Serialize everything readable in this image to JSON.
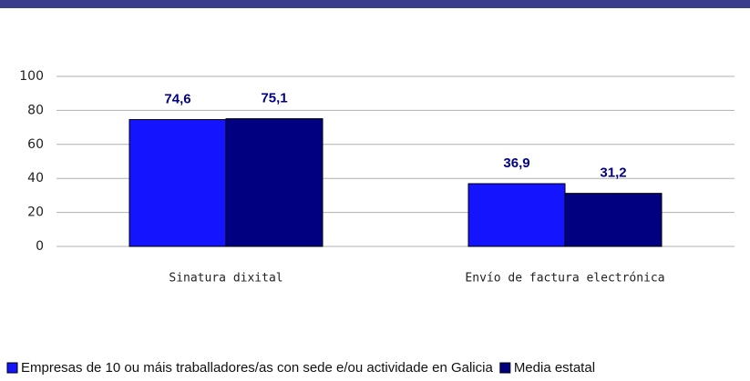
{
  "chart_data": {
    "type": "bar",
    "categories": [
      "Sinatura dixital",
      "Envío de factura electrónica"
    ],
    "series": [
      {
        "name": "Empresas de 10 ou máis traballadores/as con sede e/ou actividade en Galicia",
        "color": "#1414ff",
        "values": [
          74.6,
          36.9
        ],
        "value_labels": [
          "74,6",
          "36,9"
        ]
      },
      {
        "name": "Media estatal",
        "color": "#000080",
        "values": [
          75.1,
          31.2
        ],
        "value_labels": [
          "75,1",
          "31,2"
        ]
      }
    ],
    "ylim": [
      0,
      100
    ],
    "yticks": [
      0,
      20,
      40,
      60,
      80,
      100
    ],
    "grid": true
  }
}
